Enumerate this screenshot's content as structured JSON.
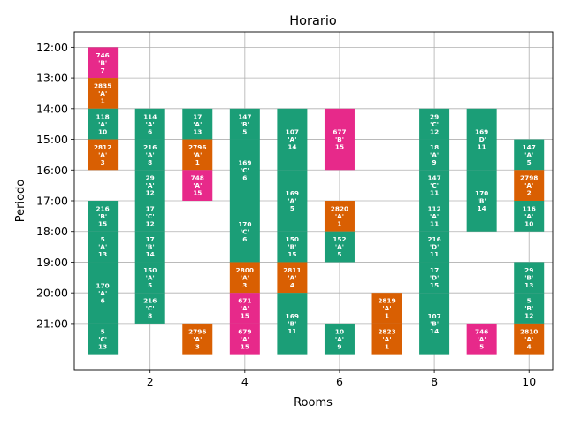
{
  "chart_data": {
    "type": "bar",
    "title": "Horario",
    "xlabel": "Rooms",
    "ylabel": "Periodo",
    "x_ticks": [
      2,
      4,
      6,
      8,
      10
    ],
    "xlim": [
      0.4,
      10.5
    ],
    "y_ticks": [
      "12:00",
      "13:00",
      "14:00",
      "15:00",
      "16:00",
      "17:00",
      "18:00",
      "19:00",
      "20:00",
      "21:00"
    ],
    "y_start_hour": 12,
    "ylim_slots": [
      -0.5,
      10.5
    ],
    "grid": true,
    "colors": {
      "green": "#1b9e77",
      "orange": "#d95f02",
      "pink": "#e7298a"
    },
    "blocks": [
      {
        "room": 1,
        "start": 12,
        "end": 13,
        "color": "pink",
        "label": [
          "746",
          "'B'",
          "7"
        ]
      },
      {
        "room": 1,
        "start": 13,
        "end": 14,
        "color": "orange",
        "label": [
          "2835",
          "'A'",
          "1"
        ]
      },
      {
        "room": 1,
        "start": 14,
        "end": 15,
        "color": "green",
        "label": [
          "118",
          "'A'",
          "10"
        ]
      },
      {
        "room": 1,
        "start": 15,
        "end": 16,
        "color": "orange",
        "label": [
          "2812",
          "'A'",
          "3"
        ]
      },
      {
        "room": 1,
        "start": 17,
        "end": 18,
        "color": "green",
        "label": [
          "216",
          "'B'",
          "15"
        ]
      },
      {
        "room": 1,
        "start": 18,
        "end": 19,
        "color": "green",
        "label": [
          "5",
          "'A'",
          "13"
        ]
      },
      {
        "room": 1,
        "start": 19,
        "end": 21,
        "color": "green",
        "label": [
          "170",
          "'A'",
          "6"
        ]
      },
      {
        "room": 1,
        "start": 21,
        "end": 22,
        "color": "green",
        "label": [
          "5",
          "'C'",
          "13"
        ]
      },
      {
        "room": 2,
        "start": 14,
        "end": 15,
        "color": "green",
        "label": [
          "114",
          "'A'",
          "6"
        ]
      },
      {
        "room": 2,
        "start": 15,
        "end": 16,
        "color": "green",
        "label": [
          "216",
          "'A'",
          "8"
        ]
      },
      {
        "room": 2,
        "start": 16,
        "end": 17,
        "color": "green",
        "label": [
          "29",
          "'A'",
          "12"
        ]
      },
      {
        "room": 2,
        "start": 17,
        "end": 18,
        "color": "green",
        "label": [
          "17",
          "'C'",
          "12"
        ]
      },
      {
        "room": 2,
        "start": 18,
        "end": 19,
        "color": "green",
        "label": [
          "17",
          "'B'",
          "14"
        ]
      },
      {
        "room": 2,
        "start": 19,
        "end": 20,
        "color": "green",
        "label": [
          "150",
          "'A'",
          "5"
        ]
      },
      {
        "room": 2,
        "start": 20,
        "end": 21,
        "color": "green",
        "label": [
          "216",
          "'C'",
          "8"
        ]
      },
      {
        "room": 3,
        "start": 14,
        "end": 15,
        "color": "green",
        "label": [
          "17",
          "'A'",
          "13"
        ]
      },
      {
        "room": 3,
        "start": 15,
        "end": 16,
        "color": "orange",
        "label": [
          "2796",
          "'A'",
          "1"
        ]
      },
      {
        "room": 3,
        "start": 16,
        "end": 17,
        "color": "pink",
        "label": [
          "748",
          "'A'",
          "15"
        ]
      },
      {
        "room": 3,
        "start": 21,
        "end": 22,
        "color": "orange",
        "label": [
          "2796",
          "'A'",
          "3"
        ]
      },
      {
        "room": 4,
        "start": 14,
        "end": 15,
        "color": "green",
        "label": [
          "147",
          "'B'",
          "5"
        ]
      },
      {
        "room": 4,
        "start": 15,
        "end": 17,
        "color": "green",
        "label": [
          "169",
          "'C'",
          "6"
        ]
      },
      {
        "room": 4,
        "start": 17,
        "end": 19,
        "color": "green",
        "label": [
          "170",
          "'C'",
          "6"
        ]
      },
      {
        "room": 4,
        "start": 19,
        "end": 20,
        "color": "orange",
        "label": [
          "2800",
          "'A'",
          "3"
        ]
      },
      {
        "room": 4,
        "start": 20,
        "end": 21,
        "color": "pink",
        "label": [
          "671",
          "'A'",
          "15"
        ]
      },
      {
        "room": 4,
        "start": 21,
        "end": 22,
        "color": "pink",
        "label": [
          "679",
          "'A'",
          "15"
        ]
      },
      {
        "room": 5,
        "start": 14,
        "end": 16,
        "color": "green",
        "label": [
          "107",
          "'A'",
          "14"
        ]
      },
      {
        "room": 5,
        "start": 16,
        "end": 18,
        "color": "green",
        "label": [
          "169",
          "'A'",
          "5"
        ]
      },
      {
        "room": 5,
        "start": 18,
        "end": 19,
        "color": "green",
        "label": [
          "150",
          "'B'",
          "15"
        ]
      },
      {
        "room": 5,
        "start": 19,
        "end": 20,
        "color": "orange",
        "label": [
          "2811",
          "'A'",
          "4"
        ]
      },
      {
        "room": 5,
        "start": 20,
        "end": 22,
        "color": "green",
        "label": [
          "169",
          "'B'",
          "11"
        ]
      },
      {
        "room": 6,
        "start": 14,
        "end": 16,
        "color": "pink",
        "label": [
          "677",
          "'B'",
          "15"
        ]
      },
      {
        "room": 6,
        "start": 17,
        "end": 18,
        "color": "orange",
        "label": [
          "2820",
          "'A'",
          "1"
        ]
      },
      {
        "room": 6,
        "start": 18,
        "end": 19,
        "color": "green",
        "label": [
          "152",
          "'A'",
          "5"
        ]
      },
      {
        "room": 6,
        "start": 21,
        "end": 22,
        "color": "green",
        "label": [
          "10",
          "'A'",
          "9"
        ]
      },
      {
        "room": 7,
        "start": 20,
        "end": 21,
        "color": "orange",
        "label": [
          "2819",
          "'A'",
          "1"
        ]
      },
      {
        "room": 7,
        "start": 21,
        "end": 22,
        "color": "orange",
        "label": [
          "2823",
          "'A'",
          "1"
        ]
      },
      {
        "room": 8,
        "start": 14,
        "end": 15,
        "color": "green",
        "label": [
          "29",
          "'C'",
          "12"
        ]
      },
      {
        "room": 8,
        "start": 15,
        "end": 16,
        "color": "green",
        "label": [
          "18",
          "'A'",
          "9"
        ]
      },
      {
        "room": 8,
        "start": 16,
        "end": 17,
        "color": "green",
        "label": [
          "147",
          "'C'",
          "11"
        ]
      },
      {
        "room": 8,
        "start": 17,
        "end": 18,
        "color": "green",
        "label": [
          "112",
          "'A'",
          "11"
        ]
      },
      {
        "room": 8,
        "start": 18,
        "end": 19,
        "color": "green",
        "label": [
          "216",
          "'D'",
          "11"
        ]
      },
      {
        "room": 8,
        "start": 19,
        "end": 20,
        "color": "green",
        "label": [
          "17",
          "'D'",
          "15"
        ]
      },
      {
        "room": 8,
        "start": 20,
        "end": 22,
        "color": "green",
        "label": [
          "107",
          "'B'",
          "14"
        ]
      },
      {
        "room": 9,
        "start": 14,
        "end": 16,
        "color": "green",
        "label": [
          "169",
          "'D'",
          "11"
        ]
      },
      {
        "room": 9,
        "start": 16,
        "end": 18,
        "color": "green",
        "label": [
          "170",
          "'B'",
          "14"
        ]
      },
      {
        "room": 9,
        "start": 21,
        "end": 22,
        "color": "pink",
        "label": [
          "746",
          "'A'",
          "5"
        ]
      },
      {
        "room": 10,
        "start": 15,
        "end": 16,
        "color": "green",
        "label": [
          "147",
          "'A'",
          "5"
        ]
      },
      {
        "room": 10,
        "start": 16,
        "end": 17,
        "color": "orange",
        "label": [
          "2798",
          "'A'",
          "2"
        ]
      },
      {
        "room": 10,
        "start": 17,
        "end": 18,
        "color": "green",
        "label": [
          "116",
          "'A'",
          "10"
        ]
      },
      {
        "room": 10,
        "start": 19,
        "end": 20,
        "color": "green",
        "label": [
          "29",
          "'B'",
          "13"
        ]
      },
      {
        "room": 10,
        "start": 20,
        "end": 21,
        "color": "green",
        "label": [
          "5",
          "'B'",
          "12"
        ]
      },
      {
        "room": 10,
        "start": 21,
        "end": 22,
        "color": "orange",
        "label": [
          "2810",
          "'A'",
          "4"
        ]
      }
    ]
  }
}
